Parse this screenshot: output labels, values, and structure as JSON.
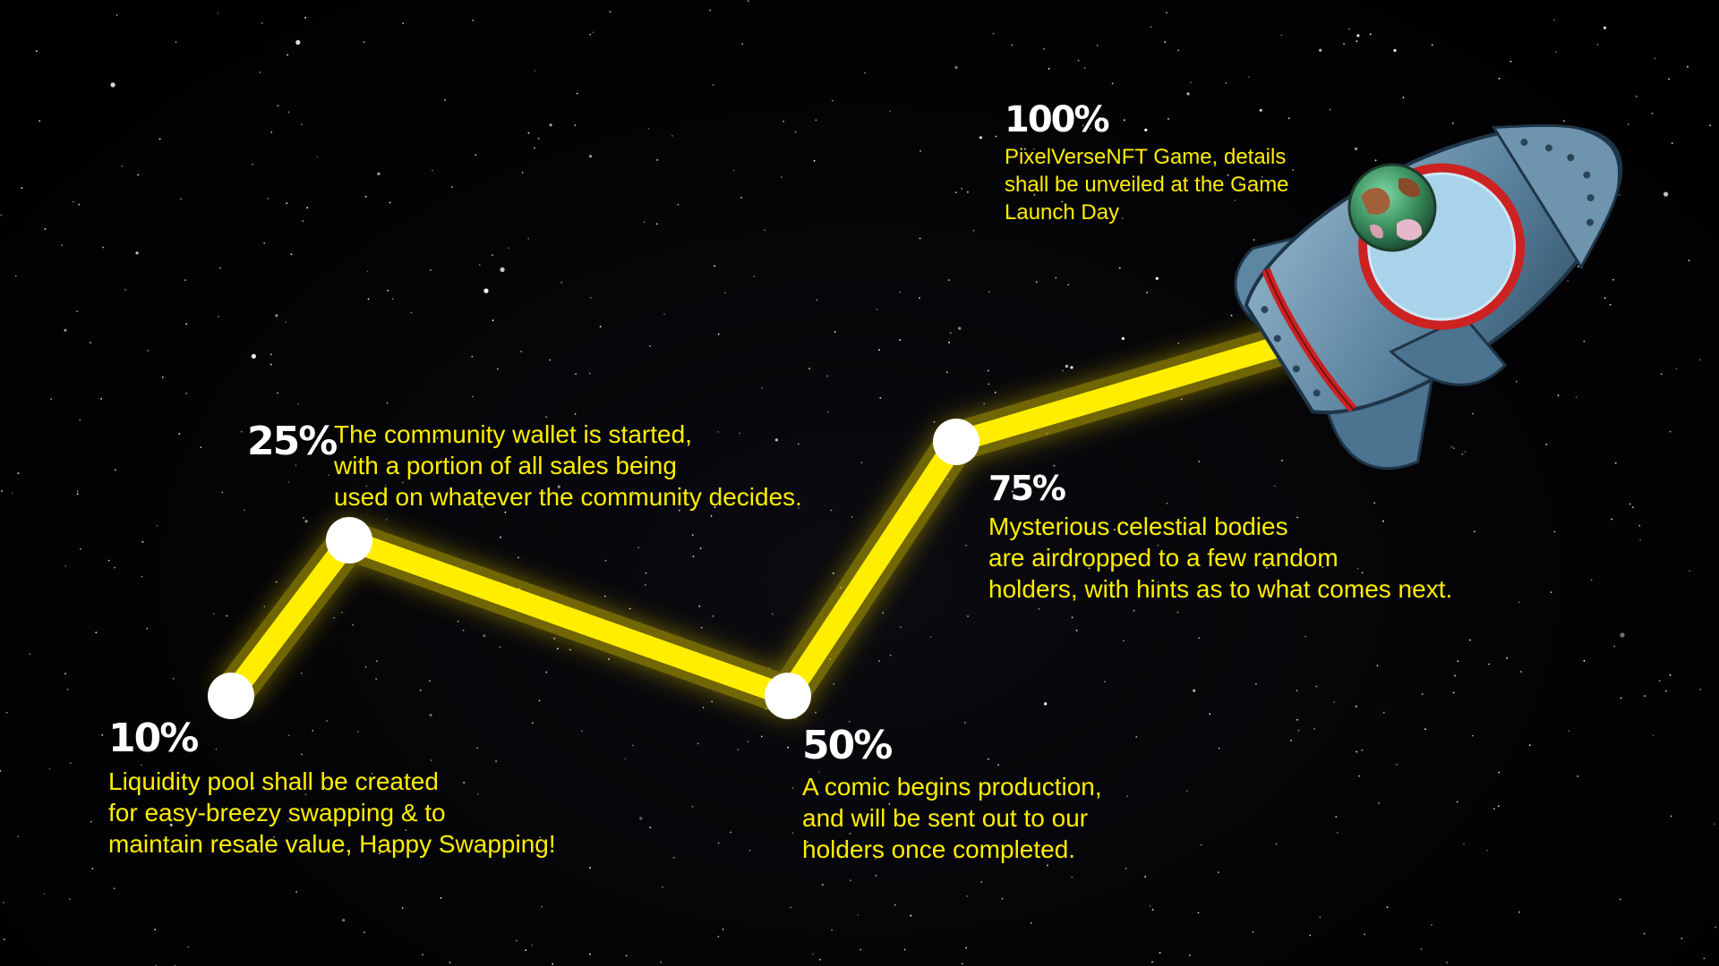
{
  "colors": {
    "path": "#ffee00",
    "node": "#ffffff",
    "text": "#ffee00",
    "percent": "#ffffff",
    "background": "#000000"
  },
  "milestones": [
    {
      "percent": "10%",
      "lines": [
        "Liquidity pool shall be created",
        "for easy-breezy swapping & to",
        "maintain resale value, Happy Swapping!"
      ]
    },
    {
      "percent": "25%",
      "lines": [
        "The community wallet is started,",
        "with a portion of all sales being",
        "used on whatever the community decides."
      ]
    },
    {
      "percent": "50%",
      "lines": [
        "A comic begins production,",
        "and will be sent out to our",
        "holders once completed."
      ]
    },
    {
      "percent": "75%",
      "lines": [
        "Mysterious celestial bodies",
        "are airdropped to a few random",
        "holders, with hints as to what comes next."
      ]
    },
    {
      "percent": "100%",
      "lines": [
        "PixelVerseNFT Game, details",
        "shall be unveiled at the Game",
        "Launch Day"
      ]
    }
  ],
  "icons": {
    "rocket": "rocket-icon",
    "planet": "planet-icon"
  }
}
